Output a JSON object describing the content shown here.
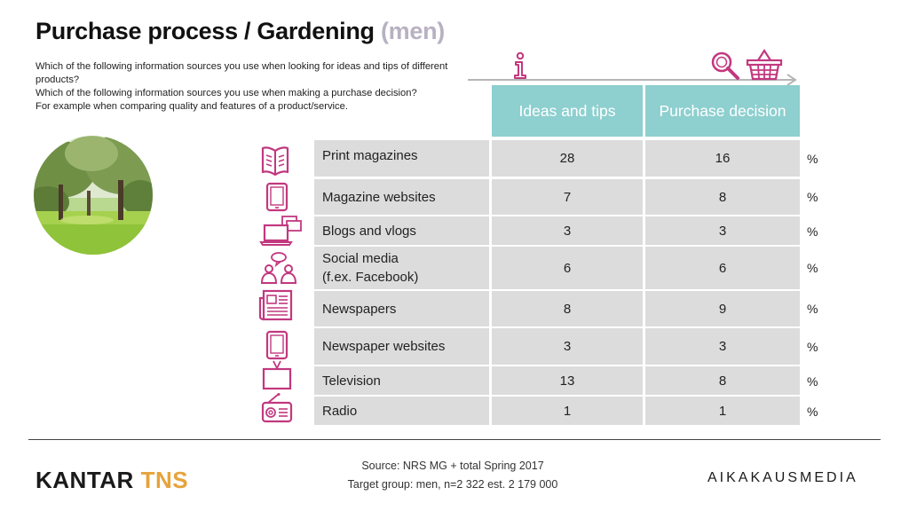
{
  "title": {
    "main": "Purchase process / Gardening",
    "suffix": "(men)"
  },
  "questions": [
    "Which of the following information sources you use when looking for ideas and tips of different products?",
    "Which of the following information sources you use when making a purchase decision?",
    "For example when comparing quality and features of a product/service."
  ],
  "chart_data": {
    "type": "table",
    "columns": [
      "Ideas and tips",
      "Purchase decision"
    ],
    "unit": "%",
    "rows": [
      {
        "label": "Print magazines",
        "ideas": "28",
        "decision": "16",
        "unit": "%",
        "icon": "open-book-icon"
      },
      {
        "label": "Magazine websites",
        "ideas": "7",
        "decision": "8",
        "unit": "%",
        "icon": "tablet-icon"
      },
      {
        "label": "Blogs and vlogs",
        "ideas": "3",
        "decision": "3",
        "unit": "%",
        "icon": "laptop-windows-icon"
      },
      {
        "label": "Social media",
        "label2": "(f.ex. Facebook)",
        "ideas": "6",
        "decision": "6",
        "unit": "%",
        "icon": "people-chat-icon"
      },
      {
        "label": "Newspapers",
        "ideas": "8",
        "decision": "9",
        "unit": "%",
        "icon": "newspaper-icon"
      },
      {
        "label": "Newspaper websites",
        "ideas": "3",
        "decision": "3",
        "unit": "%",
        "icon": "tablet-icon"
      },
      {
        "label": "Television",
        "ideas": "13",
        "decision": "8",
        "unit": "%",
        "icon": "tv-icon"
      },
      {
        "label": "Radio",
        "ideas": "1",
        "decision": "1",
        "unit": "%",
        "icon": "radio-icon"
      }
    ]
  },
  "footer": {
    "source": "Source: NRS MG + total Spring 2017",
    "target": "Target group: men, n=2 322 est. 2 179 000",
    "logo_left_a": "KANTAR",
    "logo_left_b": "TNS",
    "logo_right": "AIKAKAUSMEDIA"
  },
  "colors": {
    "header": "#8ecfcf",
    "icon": "#c2387f",
    "row": "#dcdcdc",
    "kantar_accent": "#e7a33c"
  }
}
